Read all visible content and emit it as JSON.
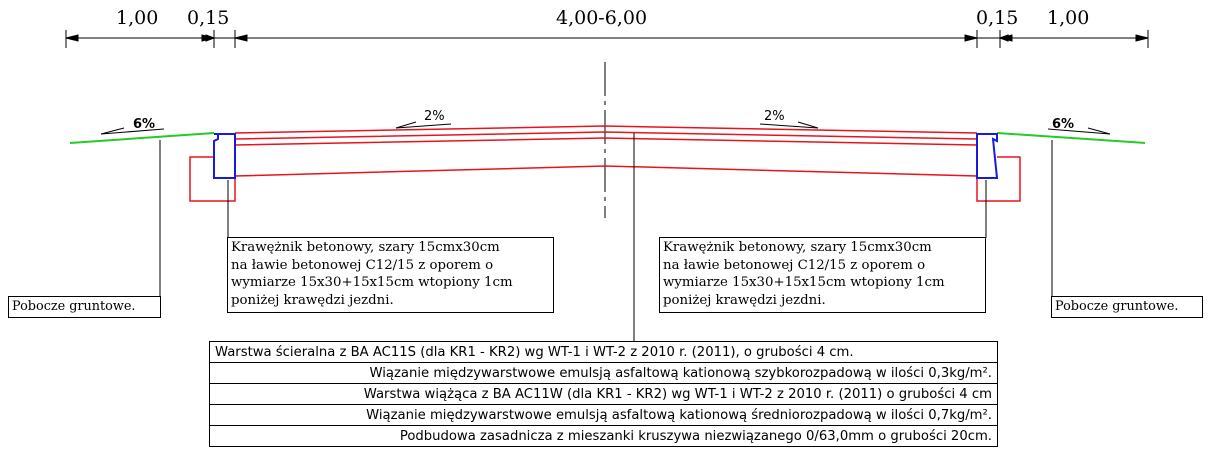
{
  "dimensions": {
    "left_shoulder": "1,00",
    "left_curb": "0,15",
    "carriageway": "4,00-6,00",
    "right_curb": "0,15",
    "right_shoulder": "1,00"
  },
  "slopes": {
    "left_shoulder": "6%",
    "left_lane": "2%",
    "right_lane": "2%",
    "right_shoulder": "6%"
  },
  "curb_notes": {
    "left": [
      "Krawężnik betonowy, szary 15cmx30cm",
      "na ławie betonowej C12/15 z oporem o",
      "wymiarze 15x30+15x15cm wtopiony 1cm",
      "poniżej krawędzi jezdni."
    ],
    "right": [
      "Krawężnik betonowy, szary 15cmx30cm",
      "na ławie betonowej C12/15 z oporem o",
      "wymiarze 15x30+15x15cm wtopiony 1cm",
      "poniżej krawędzi jezdni."
    ]
  },
  "shoulder_notes": {
    "left": "Pobocze gruntowe.",
    "right": "Pobocze gruntowe."
  },
  "layers": [
    "Warstwa ścieralna z BA AC11S (dla KR1 - KR2) wg WT-1 i WT-2 z 2010 r. (2011), o grubości 4 cm.",
    "Wiązanie międzywarstwowe emulsją asfaltową kationową szybkorozpadową w ilości 0,3kg/m².",
    "Warstwa wiążąca z BA AC11W (dla KR1 - KR2) wg WT-1 i WT-2 z 2010 r. (2011) o grubości 4 cm",
    "Wiązanie międzywarstwowe emulsją asfaltową kationową średniorozpadową w ilości 0,7kg/m².",
    "Podbudowa zasadnicza z mieszanki kruszywa niezwiązanego 0/63,0mm o grubości 20cm."
  ],
  "colors": {
    "pavement": "#e8141c",
    "curb": "#1a1adc",
    "shoulder": "#22cc22",
    "lines": "#000000"
  }
}
